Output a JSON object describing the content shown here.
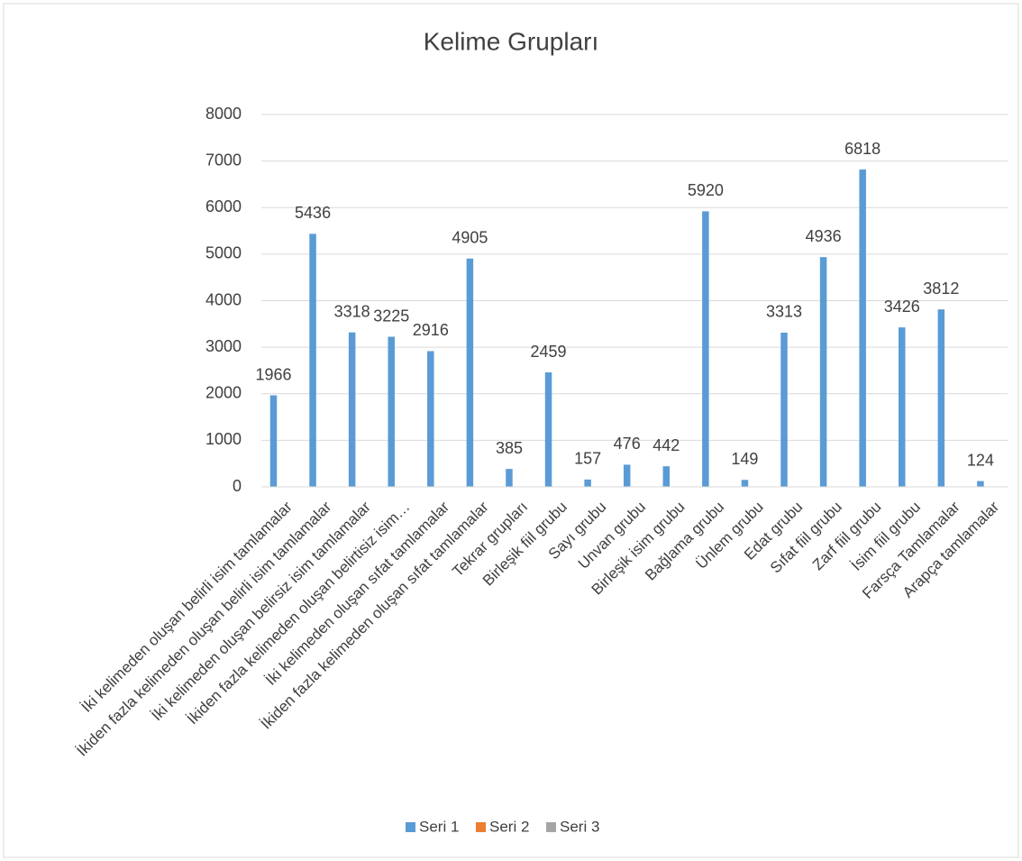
{
  "chart_data": {
    "type": "bar",
    "title": "Kelime Grupları",
    "categories": [
      "İki kelimeden oluşan belirli isim tamlamalar",
      "İkiden fazla kelimeden oluşan belirli isim tamlamalar",
      "İki kelimeden oluşan belirsiz isim tamlamalar",
      "İkiden fazla kelimeden oluşan belirtisiz isim…",
      "İki kelimeden oluşan sıfat tamlamalar",
      "İkiden fazla kelimeden oluşan sıfat tamlamalar",
      "Tekrar grupları",
      "Birleşik fiil grubu",
      "Sayı grubu",
      "Unvan grubu",
      "Birleşik isim grubu",
      "Bağlama grubu",
      "Ünlem grubu",
      "Edat grubu",
      "Sıfat fiil grubu",
      "Zarf fiil grubu",
      "İsim fiil grubu",
      "Farsça Tamlamalar",
      "Arapça tamlamalar"
    ],
    "series": [
      {
        "name": "Seri 1",
        "color": "#5b9bd5",
        "values": [
          1966,
          5436,
          3318,
          3225,
          2916,
          4905,
          385,
          2459,
          157,
          476,
          442,
          5920,
          149,
          3313,
          4936,
          6818,
          3426,
          3812,
          124
        ]
      },
      {
        "name": "Seri 2",
        "color": "#ed7d31",
        "values": [
          null,
          null,
          null,
          null,
          null,
          null,
          null,
          null,
          null,
          null,
          null,
          null,
          null,
          null,
          null,
          null,
          null,
          null,
          null
        ]
      },
      {
        "name": "Seri 3",
        "color": "#a5a5a5",
        "values": [
          null,
          null,
          null,
          null,
          null,
          null,
          null,
          null,
          null,
          null,
          null,
          null,
          null,
          null,
          null,
          null,
          null,
          null,
          null
        ]
      }
    ],
    "ylim": [
      0,
      8000
    ],
    "yticks": [
      0,
      1000,
      2000,
      3000,
      4000,
      5000,
      6000,
      7000,
      8000
    ],
    "grid": true,
    "legend": "bottom",
    "data_labels": true
  }
}
